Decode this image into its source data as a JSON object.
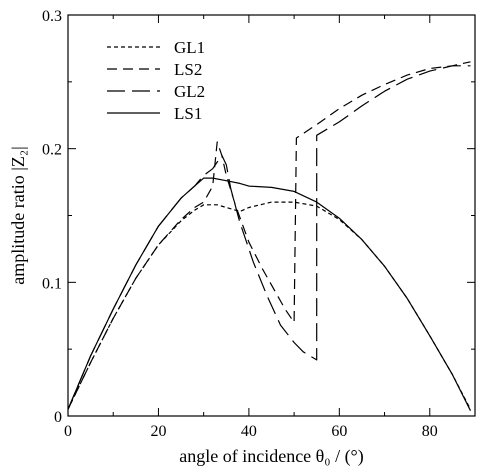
{
  "chart_data": {
    "type": "line",
    "xlabel": "angle of incidence θ₀ / (°)",
    "ylabel": "amplitude ratio |Z₂|",
    "xlim": [
      0,
      90
    ],
    "ylim": [
      0,
      0.3
    ],
    "xticks": [
      0,
      20,
      40,
      60,
      80
    ],
    "yticks": [
      0,
      0.1,
      0.2,
      0.3
    ],
    "xtick_labels": [
      "0",
      "20",
      "40",
      "60",
      "80"
    ],
    "ytick_labels": [
      "0",
      "0.1",
      "0.2",
      "0.3"
    ],
    "grid": false,
    "legend_position": "top-left",
    "series": [
      {
        "name": "GL1",
        "dash": "short-dash",
        "points": [
          [
            0,
            0.005
          ],
          [
            5,
            0.04
          ],
          [
            10,
            0.073
          ],
          [
            15,
            0.103
          ],
          [
            20,
            0.128
          ],
          [
            25,
            0.146
          ],
          [
            28,
            0.154
          ],
          [
            30,
            0.158
          ],
          [
            33,
            0.158
          ],
          [
            36,
            0.155
          ],
          [
            38,
            0.153
          ],
          [
            40,
            0.156
          ],
          [
            45,
            0.16
          ],
          [
            50,
            0.16
          ],
          [
            55,
            0.157
          ],
          [
            60,
            0.147
          ],
          [
            65,
            0.132
          ],
          [
            70,
            0.112
          ],
          [
            75,
            0.088
          ],
          [
            80,
            0.06
          ],
          [
            85,
            0.031
          ],
          [
            89,
            0.005
          ]
        ]
      },
      {
        "name": "LS2",
        "dash": "medium-dash",
        "points": [
          [
            0,
            0.005
          ],
          [
            5,
            0.04
          ],
          [
            10,
            0.073
          ],
          [
            15,
            0.103
          ],
          [
            20,
            0.128
          ],
          [
            25,
            0.147
          ],
          [
            28,
            0.156
          ],
          [
            30,
            0.16
          ],
          [
            32,
            0.172
          ],
          [
            33,
            0.205
          ],
          [
            34,
            0.195
          ],
          [
            35,
            0.18
          ],
          [
            37,
            0.158
          ],
          [
            40,
            0.13
          ],
          [
            43,
            0.11
          ],
          [
            46,
            0.092
          ],
          [
            48,
            0.08
          ],
          [
            50,
            0.07
          ],
          [
            50.5,
            0.208
          ],
          [
            55,
            0.218
          ],
          [
            60,
            0.23
          ],
          [
            65,
            0.24
          ],
          [
            70,
            0.248
          ],
          [
            75,
            0.255
          ],
          [
            80,
            0.26
          ],
          [
            85,
            0.262
          ],
          [
            89,
            0.265
          ]
        ]
      },
      {
        "name": "GL2",
        "dash": "long-dash",
        "points": [
          [
            0,
            0.005
          ],
          [
            5,
            0.045
          ],
          [
            10,
            0.08
          ],
          [
            15,
            0.113
          ],
          [
            20,
            0.142
          ],
          [
            25,
            0.163
          ],
          [
            28,
            0.172
          ],
          [
            30,
            0.18
          ],
          [
            32,
            0.185
          ],
          [
            34,
            0.195
          ],
          [
            35,
            0.188
          ],
          [
            36,
            0.17
          ],
          [
            38,
            0.145
          ],
          [
            41,
            0.115
          ],
          [
            44,
            0.09
          ],
          [
            47,
            0.068
          ],
          [
            50,
            0.055
          ],
          [
            52,
            0.048
          ],
          [
            55,
            0.042
          ],
          [
            55,
            0.21
          ],
          [
            60,
            0.22
          ],
          [
            65,
            0.232
          ],
          [
            70,
            0.243
          ],
          [
            75,
            0.252
          ],
          [
            80,
            0.258
          ],
          [
            85,
            0.262
          ],
          [
            89,
            0.262
          ]
        ]
      },
      {
        "name": "LS1",
        "dash": "solid",
        "points": [
          [
            0,
            0.005
          ],
          [
            5,
            0.045
          ],
          [
            10,
            0.08
          ],
          [
            15,
            0.113
          ],
          [
            20,
            0.142
          ],
          [
            25,
            0.163
          ],
          [
            28,
            0.172
          ],
          [
            30,
            0.178
          ],
          [
            32,
            0.178
          ],
          [
            35,
            0.176
          ],
          [
            38,
            0.174
          ],
          [
            40,
            0.172
          ],
          [
            45,
            0.171
          ],
          [
            50,
            0.168
          ],
          [
            55,
            0.16
          ],
          [
            60,
            0.148
          ],
          [
            65,
            0.132
          ],
          [
            70,
            0.112
          ],
          [
            75,
            0.088
          ],
          [
            80,
            0.06
          ],
          [
            85,
            0.031
          ],
          [
            89,
            0.004
          ]
        ]
      }
    ]
  }
}
